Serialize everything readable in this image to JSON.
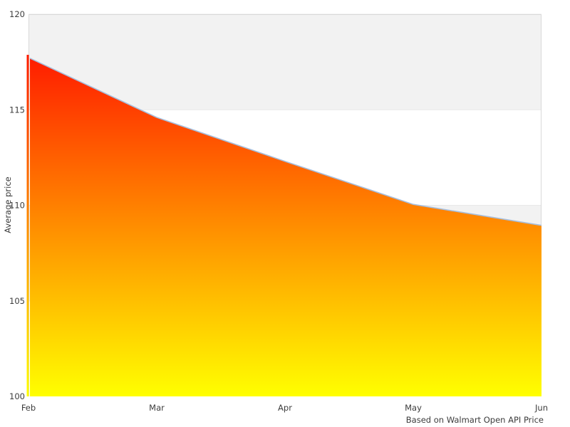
{
  "chart_data": {
    "type": "area",
    "x": [
      "Feb",
      "Mar",
      "Apr",
      "May",
      "Jun"
    ],
    "values": [
      117.7,
      114.6,
      112.3,
      110.05,
      108.95
    ],
    "title": "",
    "xlabel": "",
    "ylabel": "Average price",
    "caption": "Based on Walmart Open API Price",
    "ylim": [
      100,
      120
    ],
    "yticks": [
      100,
      105,
      110,
      115,
      120
    ],
    "xticks": [
      "Feb",
      "Mar",
      "Apr",
      "May",
      "Jun"
    ],
    "legend": "none",
    "grid": "alternating-horizontal-bands",
    "shaded_bands": [
      [
        115,
        120
      ],
      [
        105,
        110
      ]
    ],
    "colors": {
      "gradient_top": "#ff0000",
      "gradient_bottom": "#ffff00",
      "line": "#a7bedc",
      "band": "#f2f2f2",
      "band_edge": "#e9e9e9",
      "frame": "#d9d9d9",
      "text": "#3c3c3c"
    }
  }
}
